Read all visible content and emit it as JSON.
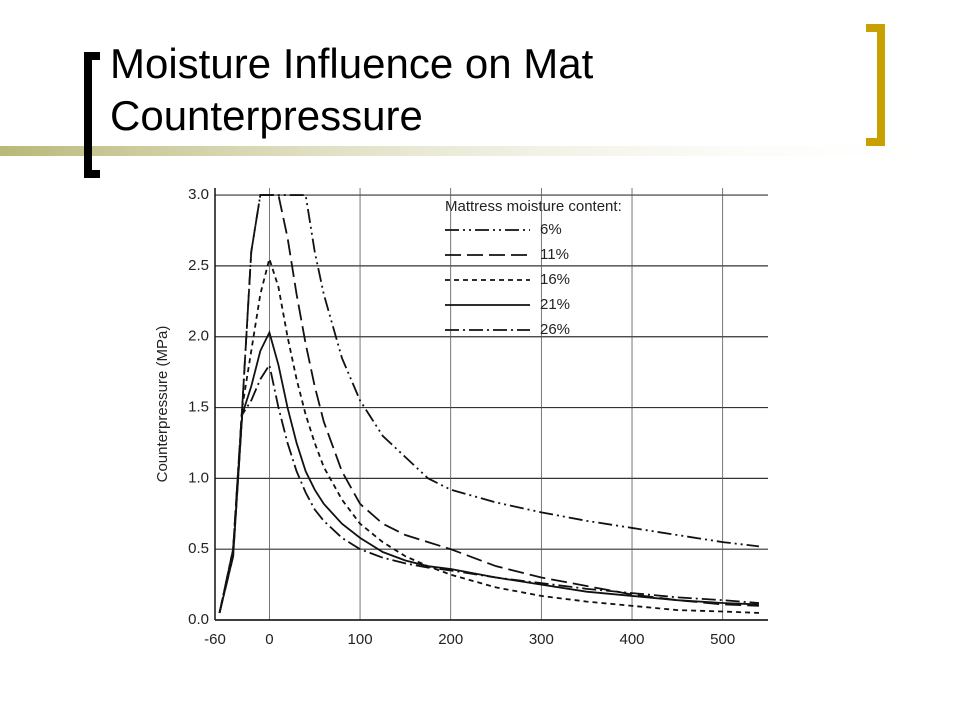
{
  "chart_data": {
    "type": "line",
    "title": "Moisture Influence on Mat Counterpressure",
    "y_label": "Counterpressure (MPa)",
    "legend_title": "Mattress moisture content:",
    "x": [
      -55,
      -40,
      -30,
      -20,
      -10,
      0,
      10,
      20,
      30,
      40,
      50,
      60,
      80,
      100,
      125,
      150,
      175,
      200,
      250,
      300,
      350,
      400,
      450,
      500,
      540
    ],
    "series": [
      {
        "name": "6%",
        "color": "#111111",
        "dash": "14 4 2 4 2 4",
        "values": [
          0.05,
          0.5,
          1.5,
          2.6,
          3.0,
          3.0,
          3.0,
          3.0,
          3.0,
          3.0,
          2.6,
          2.3,
          1.85,
          1.55,
          1.3,
          1.15,
          1.0,
          0.92,
          0.83,
          0.76,
          0.7,
          0.65,
          0.6,
          0.55,
          0.52
        ]
      },
      {
        "name": "11%",
        "color": "#111111",
        "dash": "16 6",
        "values": [
          0.05,
          0.5,
          1.5,
          2.6,
          3.0,
          3.0,
          3.0,
          2.7,
          2.3,
          1.95,
          1.65,
          1.4,
          1.05,
          0.82,
          0.68,
          0.6,
          0.55,
          0.5,
          0.38,
          0.3,
          0.24,
          0.18,
          0.14,
          0.11,
          0.1
        ]
      },
      {
        "name": "16%",
        "color": "#111111",
        "dash": "5 4",
        "values": [
          0.05,
          0.5,
          1.5,
          1.9,
          2.3,
          2.55,
          2.35,
          2.0,
          1.7,
          1.45,
          1.25,
          1.08,
          0.85,
          0.68,
          0.55,
          0.45,
          0.38,
          0.32,
          0.23,
          0.17,
          0.13,
          0.1,
          0.07,
          0.06,
          0.05
        ]
      },
      {
        "name": "21%",
        "color": "#111111",
        "dash": "none",
        "values": [
          0.05,
          0.45,
          1.45,
          1.65,
          1.9,
          2.03,
          1.8,
          1.5,
          1.25,
          1.05,
          0.92,
          0.82,
          0.68,
          0.58,
          0.48,
          0.42,
          0.38,
          0.36,
          0.3,
          0.25,
          0.2,
          0.17,
          0.14,
          0.12,
          0.11
        ]
      },
      {
        "name": "26%",
        "color": "#111111",
        "dash": "14 4 2 4",
        "values": [
          0.05,
          0.45,
          1.45,
          1.55,
          1.7,
          1.8,
          1.5,
          1.25,
          1.05,
          0.9,
          0.78,
          0.7,
          0.58,
          0.5,
          0.44,
          0.4,
          0.37,
          0.35,
          0.3,
          0.26,
          0.22,
          0.19,
          0.16,
          0.14,
          0.12
        ]
      }
    ],
    "xlim": [
      -60,
      550
    ],
    "xticks": [
      -60,
      0,
      100,
      200,
      300,
      400,
      500
    ],
    "ylim": [
      0,
      3.05
    ],
    "yticks": [
      {
        "value": 0,
        "label": "0.0"
      },
      0.5,
      {
        "value": 1,
        "label": "1.0"
      },
      1.5,
      {
        "value": 2,
        "label": "2.0"
      },
      2.5,
      {
        "value": 3,
        "label": "3.0"
      }
    ],
    "grid": true
  }
}
